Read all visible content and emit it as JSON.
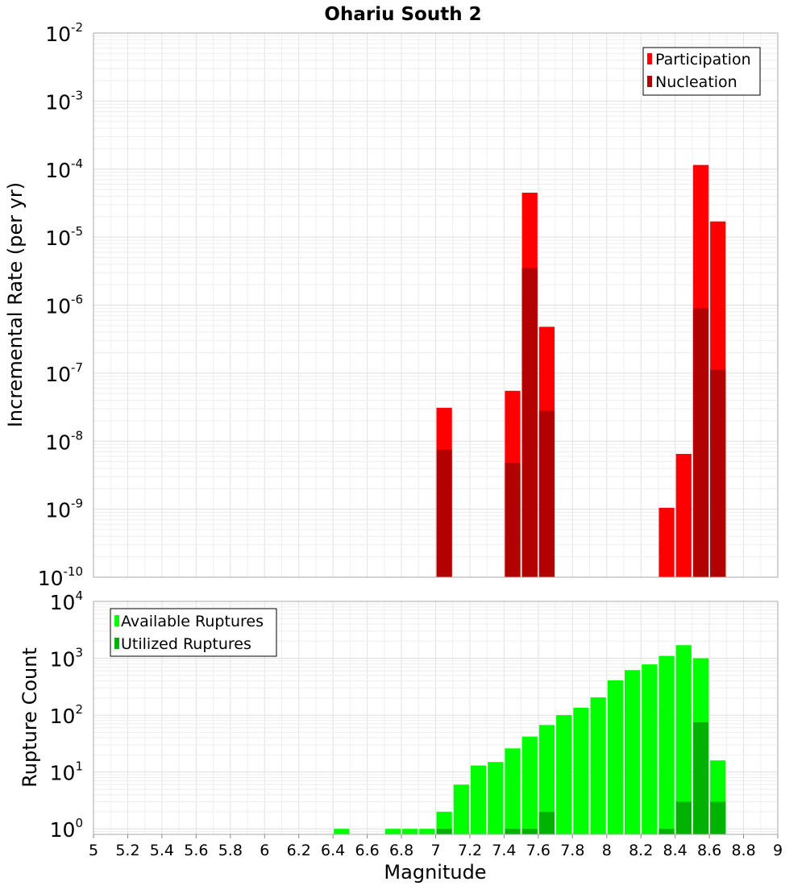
{
  "chart_data": [
    {
      "type": "bar",
      "title": "Ohariu South 2",
      "ylabel": "Incremental Rate (per yr)",
      "xlabel": "",
      "yscale": "log",
      "ylim": [
        1e-10,
        0.01
      ],
      "xlim": [
        5,
        9
      ],
      "bar_width": 0.1,
      "legend_position": "top-right",
      "grid": true,
      "y_tick_exponents": [
        -10,
        -9,
        -8,
        -7,
        -6,
        -5,
        -4,
        -3,
        -2
      ],
      "series": [
        {
          "name": "Participation",
          "color": "#ff0000",
          "x": [
            7.05,
            7.45,
            7.55,
            7.65,
            8.35,
            8.45,
            8.55,
            8.65
          ],
          "values": [
            3.1e-08,
            5.5e-08,
            4.5e-05,
            4.8e-07,
            1.05e-09,
            6.5e-09,
            0.000115,
            1.7e-05
          ]
        },
        {
          "name": "Nucleation",
          "color": "#b30000",
          "x": [
            7.05,
            7.45,
            7.55,
            7.65,
            8.55,
            8.65
          ],
          "values": [
            7.5e-09,
            4.8e-09,
            3.5e-06,
            2.8e-08,
            9e-07,
            1.12e-07
          ]
        }
      ]
    },
    {
      "type": "bar",
      "title": "",
      "ylabel": "Rupture Count",
      "xlabel": "Magnitude",
      "yscale": "log",
      "ylim": [
        0.8,
        10000
      ],
      "xlim": [
        5,
        9
      ],
      "bar_width": 0.1,
      "legend_position": "top-left",
      "grid": true,
      "y_tick_exponents": [
        0,
        1,
        2,
        3,
        4
      ],
      "x_ticks": [
        "5",
        "5.2",
        "5.4",
        "5.6",
        "5.8",
        "6",
        "6.2",
        "6.4",
        "6.6",
        "6.8",
        "7",
        "7.2",
        "7.4",
        "7.6",
        "7.8",
        "8",
        "8.2",
        "8.4",
        "8.6",
        "8.8",
        "9"
      ],
      "series": [
        {
          "name": "Available Ruptures",
          "color": "#00ff00",
          "x": [
            6.45,
            6.75,
            6.85,
            6.95,
            7.05,
            7.15,
            7.25,
            7.35,
            7.45,
            7.55,
            7.65,
            7.75,
            7.85,
            7.95,
            8.05,
            8.15,
            8.25,
            8.35,
            8.45,
            8.55,
            8.65
          ],
          "values": [
            1,
            1,
            1,
            1,
            2,
            6,
            13,
            15,
            26,
            42,
            67,
            100,
            135,
            205,
            410,
            620,
            780,
            1100,
            1700,
            1000,
            16
          ]
        },
        {
          "name": "Utilized Ruptures",
          "color": "#00b300",
          "x": [
            7.05,
            7.45,
            7.55,
            7.65,
            8.35,
            8.45,
            8.55,
            8.65
          ],
          "values": [
            1,
            1,
            1,
            2,
            1,
            3,
            75,
            3
          ]
        }
      ]
    }
  ]
}
